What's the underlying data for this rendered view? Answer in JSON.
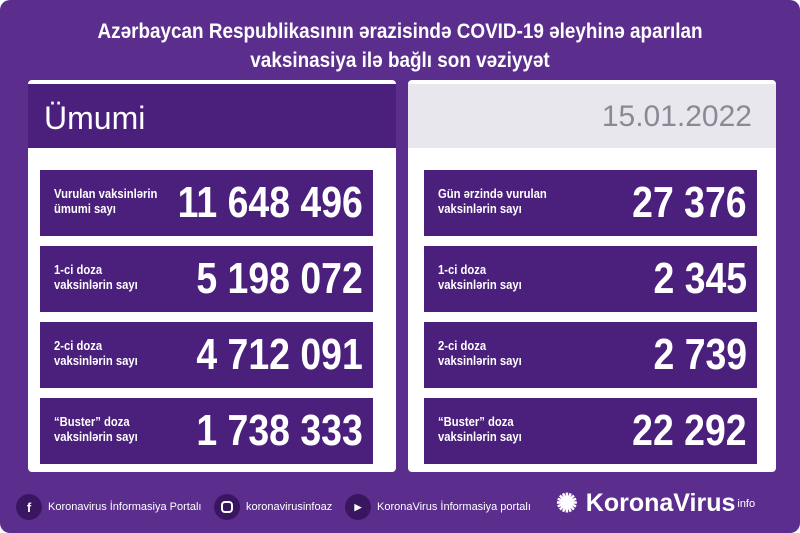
{
  "title": {
    "line1": "Azərbaycan Respublikasının ərazisində COVID-19 əleyhinə aparılan",
    "line2": "vaksinasiya ilə bağlı son vəziyyət"
  },
  "left": {
    "header": "Ümumi",
    "rows": [
      {
        "label1": "Vurulan vaksinlərin",
        "label2": "ümumi sayı",
        "value": "11 648 496"
      },
      {
        "label1": "1-ci doza",
        "label2": "vaksinlərin sayı",
        "value": "5 198 072"
      },
      {
        "label1": "2-ci doza",
        "label2": "vaksinlərin sayı",
        "value": "4 712 091"
      },
      {
        "label1": "“Buster” doza",
        "label2": "vaksinlərin sayı",
        "value": "1 738 333"
      }
    ]
  },
  "right": {
    "date": "15.01.2022",
    "rows": [
      {
        "label1": "Gün ərzində vurulan",
        "label2": "vaksinlərin sayı",
        "value": "27 376"
      },
      {
        "label1": "1-ci doza",
        "label2": "vaksinlərin sayı",
        "value": "2 345"
      },
      {
        "label1": "2-ci doza",
        "label2": "vaksinlərin sayı",
        "value": "2 739"
      },
      {
        "label1": "“Buster” doza",
        "label2": "vaksinlərin sayı",
        "value": "22 292"
      }
    ]
  },
  "footer": {
    "facebook": "Koronavirus İnformasiya Portalı",
    "instagram": "koronavirusinfoaz",
    "youtube": "KoronaVirus İnformasiya portalı",
    "brand": "KoronaVirus",
    "brand_sup": "info"
  },
  "colors": {
    "background": "#5b2e8e",
    "box": "#4b1f7c",
    "date_header": "#e9e7ee"
  }
}
